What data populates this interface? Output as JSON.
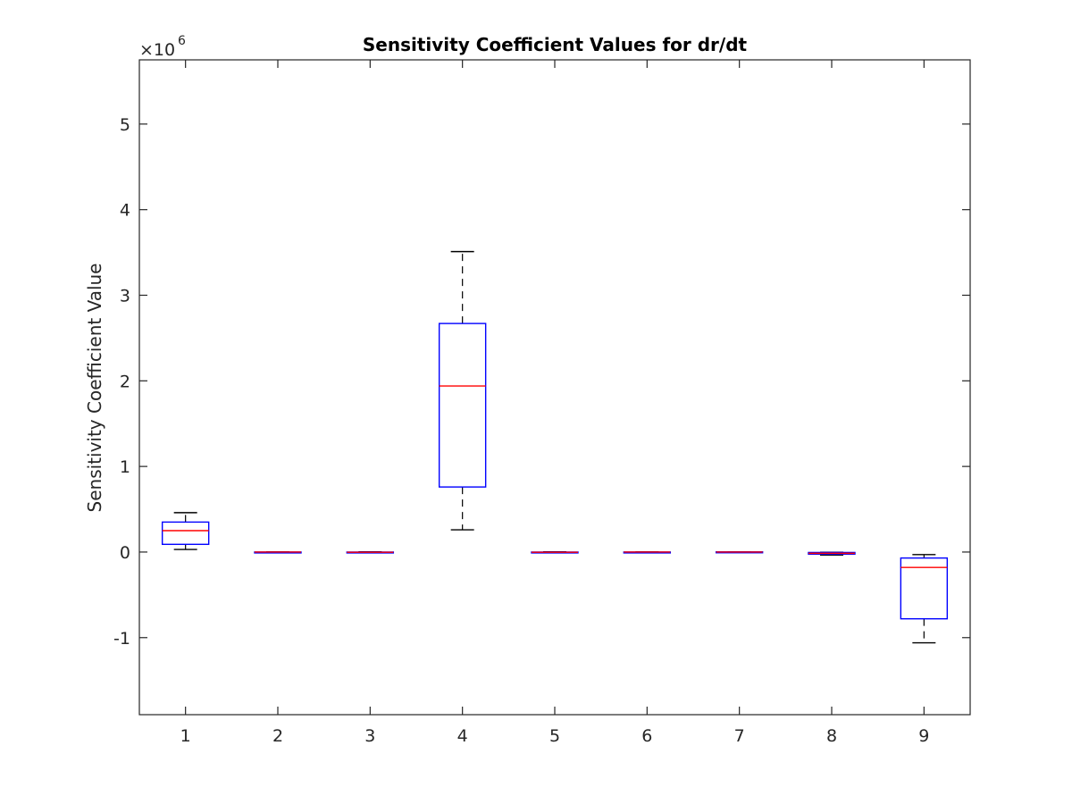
{
  "chart_data": {
    "type": "boxplot",
    "title": "Sensitivity Coefficient Values for dr/dt",
    "xlabel": "",
    "ylabel": "Sensitivity Coefficient Value",
    "y_exponent_label": "×10",
    "y_exponent_power": "6",
    "y_scale": 1000000,
    "ylim": [
      -1.9,
      5.75
    ],
    "xlim": [
      0.5,
      9.5
    ],
    "y_ticks": [
      -1,
      0,
      1,
      2,
      3,
      4,
      5
    ],
    "y_tick_labels": [
      "-1",
      "0",
      "1",
      "2",
      "3",
      "4",
      "5"
    ],
    "categories": [
      "1",
      "2",
      "3",
      "4",
      "5",
      "6",
      "7",
      "8",
      "9"
    ],
    "grid": false,
    "boxes": [
      {
        "whisker_low": 0.03,
        "q1": 0.09,
        "median": 0.25,
        "q3": 0.35,
        "whisker_high": 0.46
      },
      {
        "whisker_low": 0.0,
        "q1": 0.0,
        "median": 0.0,
        "q3": 0.0,
        "whisker_high": 0.0
      },
      {
        "whisker_low": -0.005,
        "q1": -0.003,
        "median": -0.002,
        "q3": 0.0,
        "whisker_high": 0.002
      },
      {
        "whisker_low": 0.26,
        "q1": 0.76,
        "median": 1.94,
        "q3": 2.67,
        "whisker_high": 3.51
      },
      {
        "whisker_low": -0.004,
        "q1": -0.003,
        "median": -0.002,
        "q3": 0.0,
        "whisker_high": 0.002
      },
      {
        "whisker_low": 0.0,
        "q1": 0.0,
        "median": 0.0,
        "q3": 0.0,
        "whisker_high": 0.0
      },
      {
        "whisker_low": 0.0,
        "q1": 0.0,
        "median": 0.0,
        "q3": 0.002,
        "whisker_high": 0.003
      },
      {
        "whisker_low": -0.035,
        "q1": -0.025,
        "median": -0.015,
        "q3": -0.005,
        "whisker_high": -0.002
      },
      {
        "whisker_low": -1.06,
        "q1": -0.78,
        "median": -0.18,
        "q3": -0.07,
        "whisker_high": -0.03
      }
    ],
    "colors": {
      "box": "#0000ff",
      "median": "#ff0000",
      "whisker": "#000000",
      "axis": "#262626"
    }
  }
}
